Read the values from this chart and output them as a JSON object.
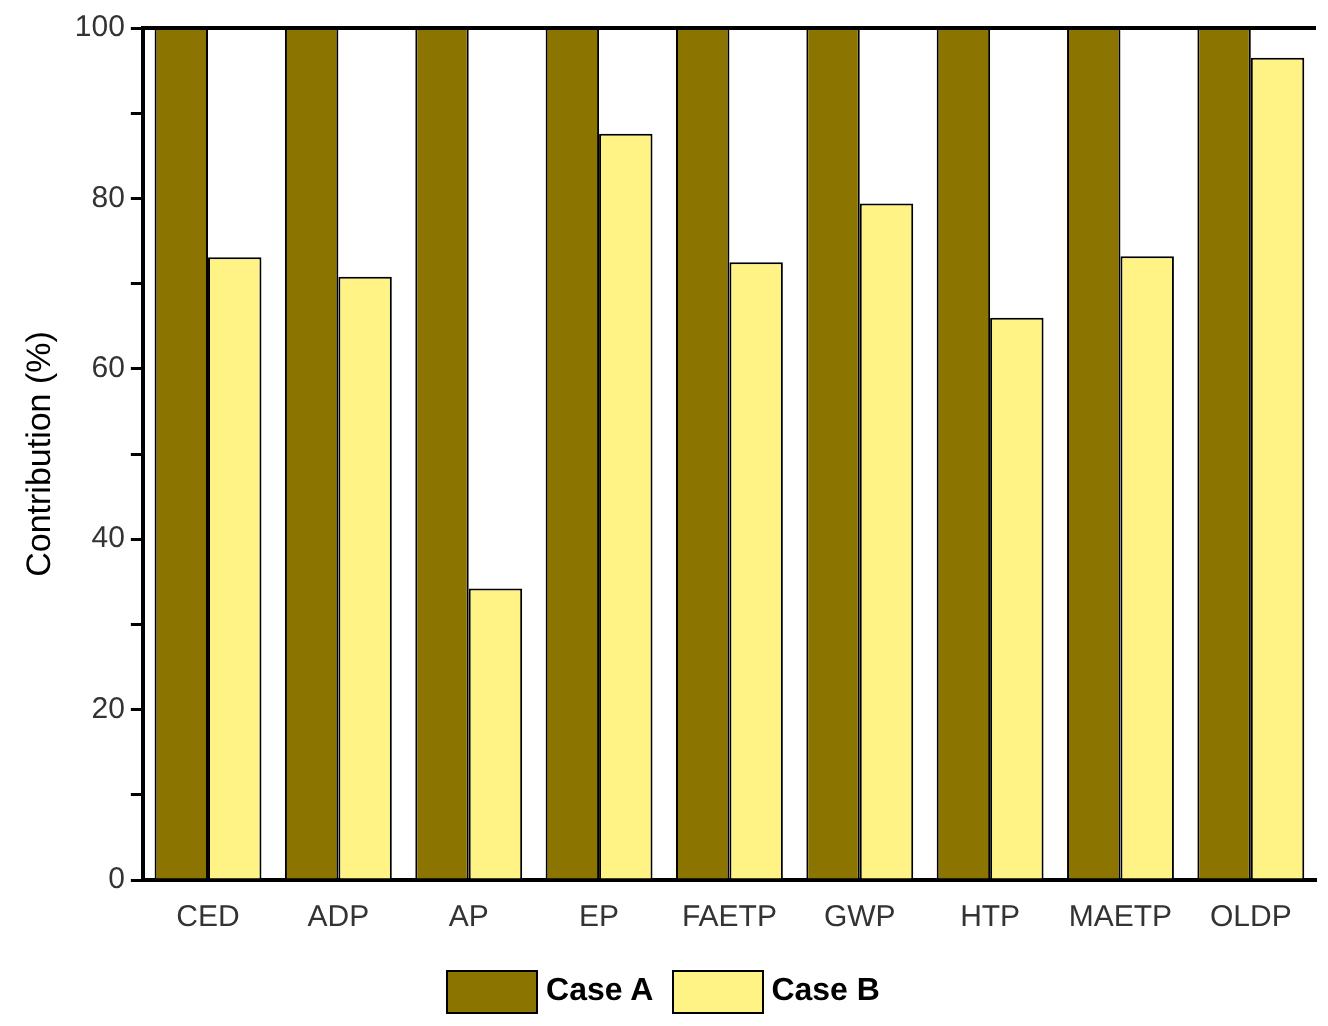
{
  "chart_data": {
    "type": "bar",
    "ylabel": "Contribution (%)",
    "categories": [
      "CED",
      "ADP",
      "AP",
      "EP",
      "FAETP",
      "GWP",
      "HTP",
      "MAETP",
      "OLDP"
    ],
    "series": [
      {
        "name": "Case A",
        "color": "#8b7500",
        "values": [
          100,
          100,
          100,
          100,
          100,
          100,
          100,
          100,
          100
        ]
      },
      {
        "name": "Case B",
        "color": "#fff385",
        "values": [
          73.1,
          70.8,
          34.2,
          87.6,
          72.5,
          79.4,
          66,
          73.2,
          96.5
        ]
      }
    ],
    "ylim": [
      0,
      100
    ],
    "yticks": [
      0,
      {
        "value": 10,
        "label": null
      },
      20,
      {
        "value": 30,
        "label": null
      },
      40,
      {
        "value": 50,
        "label": null
      },
      60,
      {
        "value": 70,
        "label": null
      },
      80,
      {
        "value": 90,
        "label": null
      },
      100
    ],
    "grid": false,
    "legend": "bottom"
  }
}
